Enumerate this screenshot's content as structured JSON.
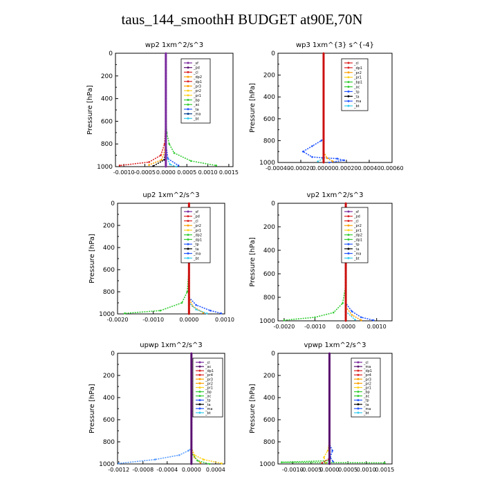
{
  "figure_title": "taus_144_smoothH  BUDGET at90E,70N",
  "colors": {
    "purple": "#7a2a9e",
    "dark_purple": "#5a1070",
    "red": "#dd2222",
    "orange": "#ffa200",
    "yellow": "#ffd11a",
    "green": "#33cc33",
    "blue": "#2255ff",
    "dark_blue": "#003c8f",
    "black": "#000000",
    "cyan": "#33ccee",
    "skyblue": "#5599ff",
    "line_red": "#cc1111"
  },
  "chart_data": [
    {
      "type": "line",
      "title": "wp2   1xm^2/s^3",
      "ylabel": "Pressure [hPa]",
      "ylim": [
        1000,
        0
      ],
      "xlim": [
        -0.0012,
        0.0016
      ],
      "xticks": [
        "-0.0010",
        "-0.0005",
        "0.0000",
        "0.0005",
        "0.0010",
        "0.0015"
      ],
      "xtick_values": [
        -0.001,
        -0.0005,
        0,
        0.0005,
        0.001,
        0.0015
      ],
      "yticks": [
        "0",
        "200",
        "400",
        "600",
        "800",
        "1000"
      ],
      "legend_placement": "top-right",
      "legend": [
        "_sf",
        "_pd",
        "_cl",
        "_dp2",
        "_dp1",
        "_pr3",
        "_pr2",
        "_pr1",
        "_bp",
        "_ac",
        "_ta",
        "_ma",
        "_bt"
      ],
      "legend_colors": [
        "purple",
        "dark_purple",
        "red",
        "orange",
        "red",
        "orange",
        "yellow",
        "yellow",
        "green",
        "green",
        "blue",
        "dark_blue",
        "cyan"
      ],
      "series": [
        {
          "color": "green",
          "points": [
            [
              0,
              0
            ],
            [
              0,
              500
            ],
            [
              2e-05,
              700
            ],
            [
              8e-05,
              800
            ],
            [
              0.0002,
              880
            ],
            [
              0.0006,
              950
            ],
            [
              0.0012,
              990
            ]
          ]
        },
        {
          "color": "red",
          "points": [
            [
              0,
              0
            ],
            [
              0,
              600
            ],
            [
              -3e-05,
              800
            ],
            [
              -0.00012,
              900
            ],
            [
              -0.0004,
              960
            ],
            [
              -0.0011,
              990
            ]
          ]
        },
        {
          "color": "orange",
          "points": [
            [
              0,
              0
            ],
            [
              0,
              700
            ],
            [
              -2e-05,
              850
            ],
            [
              -0.0001,
              940
            ],
            [
              -0.0004,
              985
            ]
          ]
        },
        {
          "color": "blue",
          "points": [
            [
              0,
              0
            ],
            [
              0,
              800
            ],
            [
              5e-05,
              930
            ],
            [
              0.0003,
              990
            ]
          ]
        },
        {
          "color": "black",
          "points": [
            [
              0,
              0
            ],
            [
              0,
              850
            ],
            [
              -4e-05,
              940
            ],
            [
              -0.0003,
              995
            ]
          ]
        },
        {
          "color": "cyan",
          "points": [
            [
              0,
              0
            ],
            [
              0,
              900
            ],
            [
              0.0001,
              980
            ],
            [
              0.00025,
              1000
            ]
          ]
        },
        {
          "color": "purple",
          "points": [
            [
              0,
              0
            ],
            [
              0,
              1000
            ]
          ]
        }
      ]
    },
    {
      "type": "line",
      "title": "wp3   1xm^{3} s^{-4}",
      "ylabel": "Pressure [hPa]",
      "ylim": [
        1000,
        0
      ],
      "xlim": [
        -0.0004,
        0.0006
      ],
      "xticks": [
        "-0.00040",
        "-0.00020",
        "0.00000",
        "0.00020",
        "0.00040",
        "0.00060"
      ],
      "xtick_values": [
        -0.0004,
        -0.0002,
        0,
        0.0002,
        0.0004,
        0.0006
      ],
      "yticks": [
        "0",
        "200",
        "400",
        "600",
        "800",
        "1000"
      ],
      "legend_placement": "top-right",
      "legend": [
        "_cl",
        "_dp1",
        "_pr2",
        "_pr1",
        "_bp1",
        "_ac",
        "_tp",
        "_ta",
        "_ma",
        "_bt"
      ],
      "legend_colors": [
        "red",
        "red",
        "orange",
        "yellow",
        "green",
        "green",
        "blue",
        "black",
        "blue",
        "cyan"
      ],
      "series": [
        {
          "color": "blue",
          "points": [
            [
              0,
              0
            ],
            [
              0,
              780
            ],
            [
              -2e-05,
              800
            ],
            [
              -0.0001,
              850
            ],
            [
              -0.00018,
              900
            ],
            [
              -0.0001,
              950
            ],
            [
              0.00012,
              965
            ],
            [
              0.00018,
              980
            ],
            [
              5e-05,
              1000
            ]
          ]
        },
        {
          "color": "orange",
          "points": [
            [
              0,
              0
            ],
            [
              0,
              900
            ],
            [
              3e-05,
              960
            ],
            [
              8e-05,
              990
            ]
          ]
        },
        {
          "color": "cyan",
          "points": [
            [
              0,
              0
            ],
            [
              0,
              960
            ],
            [
              -5e-05,
              990
            ]
          ]
        },
        {
          "color": "line_red",
          "points": [
            [
              0,
              0
            ],
            [
              0,
              1000
            ]
          ]
        }
      ]
    },
    {
      "type": "line",
      "title": "up2   1xm^2/s^3",
      "ylabel": "Pressure [hPa]",
      "ylim": [
        1000,
        0
      ],
      "xlim": [
        -0.002,
        0.001
      ],
      "xticks": [
        "-0.0020",
        "-0.0010",
        "0.0000",
        "0.0010"
      ],
      "xtick_values": [
        -0.002,
        -0.001,
        0,
        0.001
      ],
      "yticks": [
        "0",
        "200",
        "400",
        "600",
        "800",
        "1000"
      ],
      "legend_placement": "top-right",
      "legend": [
        "_sf",
        "_pd",
        "_cl",
        "_pr2",
        "_pr1",
        "_dp2",
        "_dp1",
        "_tp",
        "_ta",
        "_ma",
        "_bt"
      ],
      "legend_colors": [
        "purple",
        "red",
        "red",
        "orange",
        "yellow",
        "green",
        "green",
        "blue",
        "black",
        "blue",
        "cyan"
      ],
      "series": [
        {
          "color": "green",
          "points": [
            [
              0,
              0
            ],
            [
              0,
              600
            ],
            [
              -5e-05,
              800
            ],
            [
              -0.0002,
              900
            ],
            [
              -0.0008,
              970
            ],
            [
              -0.0018,
              995
            ]
          ]
        },
        {
          "color": "blue",
          "points": [
            [
              0,
              0
            ],
            [
              0,
              850
            ],
            [
              0.0002,
              920
            ],
            [
              0.0006,
              970
            ],
            [
              0.0009,
              995
            ]
          ]
        },
        {
          "color": "orange",
          "points": [
            [
              0,
              0
            ],
            [
              0,
              850
            ],
            [
              0.0001,
              930
            ],
            [
              0.0004,
              990
            ]
          ]
        },
        {
          "color": "cyan",
          "points": [
            [
              0,
              0
            ],
            [
              0,
              900
            ],
            [
              0.0002,
              960
            ],
            [
              0.0005,
              995
            ]
          ]
        },
        {
          "color": "line_red",
          "points": [
            [
              0,
              0
            ],
            [
              0,
              1000
            ]
          ]
        }
      ]
    },
    {
      "type": "line",
      "title": "vp2   1xm^2/s^3",
      "ylabel": "Pressure [hPa]",
      "ylim": [
        1000,
        0
      ],
      "xlim": [
        -0.0022,
        0.0015
      ],
      "xticks": [
        "-0.0020",
        "-0.0010",
        "0.0000",
        "0.0010"
      ],
      "xtick_values": [
        -0.002,
        -0.001,
        0,
        0.001
      ],
      "yticks": [
        "0",
        "200",
        "400",
        "600",
        "800",
        "1000"
      ],
      "legend_placement": "top-right",
      "legend": [
        "_sf",
        "_pd",
        "_cl",
        "_pr2",
        "_pr1",
        "_dp2",
        "_dp1",
        "_tp",
        "_ta",
        "_ma",
        "_bt"
      ],
      "legend_colors": [
        "purple",
        "red",
        "red",
        "orange",
        "yellow",
        "green",
        "green",
        "blue",
        "black",
        "blue",
        "cyan"
      ],
      "series": [
        {
          "color": "green",
          "points": [
            [
              0,
              0
            ],
            [
              0,
              700
            ],
            [
              -0.0001,
              850
            ],
            [
              -0.0004,
              930
            ],
            [
              -0.001,
              970
            ],
            [
              -0.002,
              995
            ]
          ]
        },
        {
          "color": "blue",
          "points": [
            [
              0,
              0
            ],
            [
              0,
              850
            ],
            [
              0.0002,
              920
            ],
            [
              0.0005,
              970
            ],
            [
              0.0009,
              995
            ]
          ]
        },
        {
          "color": "orange",
          "points": [
            [
              0,
              0
            ],
            [
              0,
              880
            ],
            [
              0.0002,
              950
            ],
            [
              0.0005,
              995
            ]
          ]
        },
        {
          "color": "cyan",
          "points": [
            [
              0,
              0
            ],
            [
              0,
              920
            ],
            [
              0.0003,
              990
            ]
          ]
        },
        {
          "color": "line_red",
          "points": [
            [
              0,
              0
            ],
            [
              0,
              1000
            ]
          ]
        }
      ]
    },
    {
      "type": "line",
      "title": "upwp   1xm^2/s^3",
      "ylabel": "Pressure [hPa]",
      "ylim": [
        1000,
        0
      ],
      "xlim": [
        -0.00122,
        0.00055
      ],
      "xticks": [
        "-0.0012",
        "-0.0008",
        "-0.0004",
        "0.0000",
        "0.0004"
      ],
      "xtick_values": [
        -0.0012,
        -0.0008,
        -0.0004,
        0,
        0.0004
      ],
      "yticks": [
        "0",
        "200",
        "400",
        "600",
        "800",
        "1000"
      ],
      "legend_placement": "top-right",
      "legend": [
        "_cl",
        "_ac",
        "_dp1",
        "_pr4",
        "_pr3",
        "_pr2",
        "_pr1",
        "_bp",
        "_ac",
        "_tp",
        "_ta",
        "_ma",
        "_bt"
      ],
      "legend_colors": [
        "purple",
        "dark_purple",
        "red",
        "red",
        "orange",
        "orange",
        "yellow",
        "green",
        "green",
        "blue",
        "black",
        "blue",
        "cyan"
      ],
      "series": [
        {
          "color": "skyblue",
          "points": [
            [
              0,
              0
            ],
            [
              0,
              860
            ],
            [
              -5e-05,
              880
            ],
            [
              -0.0002,
              920
            ],
            [
              -0.0006,
              960
            ],
            [
              -0.0012,
              995
            ]
          ]
        },
        {
          "color": "yellow",
          "points": [
            [
              0,
              0
            ],
            [
              0,
              850
            ],
            [
              5e-05,
              920
            ],
            [
              0.0002,
              960
            ],
            [
              0.0005,
              995
            ]
          ]
        },
        {
          "color": "orange",
          "points": [
            [
              0,
              0
            ],
            [
              0,
              880
            ],
            [
              5e-05,
              940
            ],
            [
              0.00015,
              990
            ]
          ]
        },
        {
          "color": "green",
          "points": [
            [
              0,
              0
            ],
            [
              0,
              900
            ],
            [
              0.0001,
              970
            ],
            [
              0.0003,
              1000
            ]
          ]
        },
        {
          "color": "dark_purple",
          "points": [
            [
              0,
              0
            ],
            [
              0,
              1000
            ]
          ]
        }
      ]
    },
    {
      "type": "line",
      "title": "vpwp   1xm^2/s^3",
      "ylabel": "Pressure [hPa]",
      "ylim": [
        1000,
        0
      ],
      "xlim": [
        -0.0014,
        0.0017
      ],
      "xticks": [
        "-0.0010",
        "-0.0005",
        "0.0000",
        "0.0005",
        "0.0010",
        "0.0015"
      ],
      "xtick_values": [
        -0.001,
        -0.0005,
        0,
        0.0005,
        0.001,
        0.0015
      ],
      "yticks": [
        "0",
        "200",
        "400",
        "600",
        "800",
        "1000"
      ],
      "legend_placement": "top-right",
      "legend": [
        "_cl",
        "_ma",
        "_dp1",
        "_pr4",
        "_pr3",
        "_pr2",
        "_pr1",
        "_bp",
        "_ac",
        "_tp",
        "_ta",
        "_ma",
        "_bt"
      ],
      "legend_colors": [
        "purple",
        "dark_purple",
        "red",
        "red",
        "orange",
        "orange",
        "yellow",
        "green",
        "green",
        "blue",
        "black",
        "blue",
        "cyan"
      ],
      "series": [
        {
          "color": "yellow",
          "points": [
            [
              0,
              0
            ],
            [
              0,
              800
            ],
            [
              -5e-05,
              880
            ],
            [
              -0.00015,
              940
            ],
            [
              -0.0001,
              990
            ]
          ]
        },
        {
          "color": "blue",
          "points": [
            [
              0,
              0
            ],
            [
              0,
              820
            ],
            [
              8e-05,
              880
            ],
            [
              2e-05,
              940
            ],
            [
              0.0001,
              980
            ]
          ]
        },
        {
          "color": "green",
          "points": [
            [
              0,
              0
            ],
            [
              0,
              970
            ],
            [
              -0.0013,
              985
            ],
            [
              0.0015,
              990
            ]
          ]
        },
        {
          "color": "red",
          "points": [
            [
              0,
              0
            ],
            [
              0,
              950
            ],
            [
              -0.0002,
              990
            ]
          ]
        },
        {
          "color": "dark_purple",
          "points": [
            [
              0,
              0
            ],
            [
              0,
              1000
            ]
          ]
        }
      ]
    }
  ]
}
